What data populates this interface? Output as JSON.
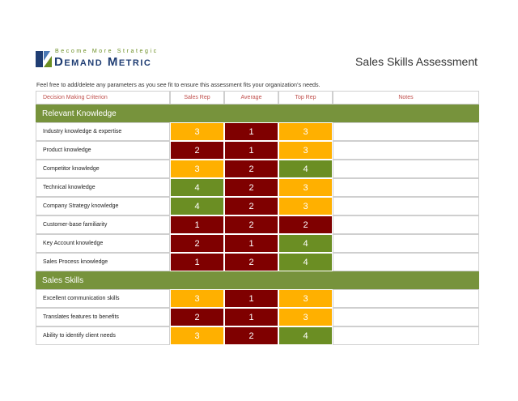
{
  "header": {
    "tagline": "Become More Strategic",
    "brand": "Demand Metric",
    "title": "Sales Skills Assessment"
  },
  "instructions": "Feel free to add/delete any parameters as you see fit to ensure this assessment fits your organization’s needs.",
  "score_colors": {
    "1": "#7f0000",
    "2": "#7f0000",
    "3": "#ffb000",
    "4": "#6b8e23"
  },
  "table": {
    "columns": [
      "Decision Making Criterion",
      "Sales Rep",
      "Average",
      "Top Rep",
      "Notes"
    ],
    "sections": [
      {
        "title": "Relevant Knowledge",
        "rows": [
          {
            "label": "Industry knowledge & expertise",
            "scores": [
              3,
              1,
              3
            ]
          },
          {
            "label": "Product knowledge",
            "scores": [
              2,
              1,
              3
            ]
          },
          {
            "label": "Competitor knowledge",
            "scores": [
              3,
              2,
              4
            ]
          },
          {
            "label": "Technical knowledge",
            "scores": [
              4,
              2,
              3
            ]
          },
          {
            "label": "Company Strategy knowledge",
            "scores": [
              4,
              2,
              3
            ]
          },
          {
            "label": "Customer-base familiarity",
            "scores": [
              1,
              2,
              2
            ]
          },
          {
            "label": "Key Account knowledge",
            "scores": [
              2,
              1,
              4
            ]
          },
          {
            "label": "Sales Process knowledge",
            "scores": [
              1,
              2,
              4
            ]
          }
        ]
      },
      {
        "title": "Sales Skills",
        "rows": [
          {
            "label": "Excellent communication skills",
            "scores": [
              3,
              1,
              3
            ]
          },
          {
            "label": "Translates features to benefits",
            "scores": [
              2,
              1,
              3
            ]
          },
          {
            "label": "Ability to identify client needs",
            "scores": [
              3,
              2,
              4
            ]
          }
        ]
      }
    ]
  }
}
